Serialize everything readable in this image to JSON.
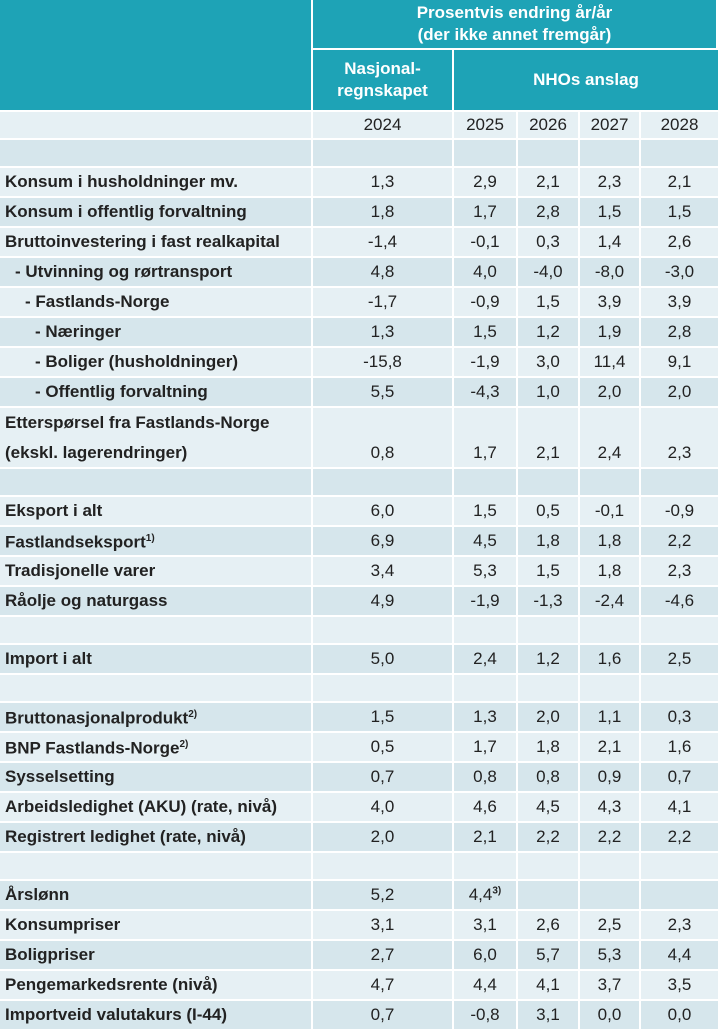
{
  "header": {
    "title": "Prosentvis endring år/år\n(der ikke annet fremgår)",
    "group1": "Nasjonal-\nregnskapet",
    "group2": "NHOs anslag",
    "years": [
      "2024",
      "2025",
      "2026",
      "2027",
      "2028"
    ]
  },
  "table": {
    "rows": [
      null,
      {
        "label": "Konsum i husholdninger mv.",
        "level": 0,
        "values": [
          "1,3",
          "2,9",
          "2,1",
          "2,3",
          "2,1"
        ]
      },
      {
        "label": "Konsum i offentlig forvaltning",
        "level": 0,
        "values": [
          "1,8",
          "1,7",
          "2,8",
          "1,5",
          "1,5"
        ]
      },
      {
        "label": "Bruttoinvestering i fast realkapital",
        "level": 0,
        "values": [
          "-1,4",
          "-0,1",
          "0,3",
          "1,4",
          "2,6"
        ]
      },
      {
        "label": "- Utvinning og rørtransport",
        "level": 1,
        "values": [
          "4,8",
          "4,0",
          "-4,0",
          "-8,0",
          "-3,0"
        ]
      },
      {
        "label": "- Fastlands-Norge",
        "level": 2,
        "values": [
          "-1,7",
          "-0,9",
          "1,5",
          "3,9",
          "3,9"
        ]
      },
      {
        "label": "- Næringer",
        "level": 3,
        "values": [
          "1,3",
          "1,5",
          "1,2",
          "1,9",
          "2,8"
        ]
      },
      {
        "label": "- Boliger (husholdninger)",
        "level": 3,
        "values": [
          "-15,8",
          "-1,9",
          "3,0",
          "11,4",
          "9,1"
        ]
      },
      {
        "label": "- Offentlig forvaltning",
        "level": 3,
        "values": [
          "5,5",
          "-4,3",
          "1,0",
          "2,0",
          "2,0"
        ]
      },
      {
        "label": "Etterspørsel fra Fastlands-Norge\n(ekskl. lagerendringer)",
        "level": 0,
        "values": [
          "0,8",
          "1,7",
          "2,1",
          "2,4",
          "2,3"
        ]
      },
      null,
      {
        "label": "Eksport i alt",
        "level": 0,
        "values": [
          "6,0",
          "1,5",
          "0,5",
          "-0,1",
          "-0,9"
        ]
      },
      {
        "label": "Fastlandseksport",
        "note": "1)",
        "level": 0,
        "values": [
          "6,9",
          "4,5",
          "1,8",
          "1,8",
          "2,2"
        ]
      },
      {
        "label": "Tradisjonelle varer",
        "level": 0,
        "values": [
          "3,4",
          "5,3",
          "1,5",
          "1,8",
          "2,3"
        ]
      },
      {
        "label": "Råolje og naturgass",
        "level": 0,
        "values": [
          "4,9",
          "-1,9",
          "-1,3",
          "-2,4",
          "-4,6"
        ]
      },
      null,
      {
        "label": "Import i alt",
        "level": 0,
        "values": [
          "5,0",
          "2,4",
          "1,2",
          "1,6",
          "2,5"
        ]
      },
      null,
      {
        "label": "Bruttonasjonalprodukt",
        "note": "2)",
        "level": 0,
        "values": [
          "1,5",
          "1,3",
          "2,0",
          "1,1",
          "0,3"
        ]
      },
      {
        "label": "BNP Fastlands-Norge",
        "note": "2)",
        "level": 0,
        "values": [
          "0,5",
          "1,7",
          "1,8",
          "2,1",
          "1,6"
        ]
      },
      {
        "label": "Sysselsetting",
        "level": 0,
        "values": [
          "0,7",
          "0,8",
          "0,8",
          "0,9",
          "0,7"
        ]
      },
      {
        "label": "Arbeidsledighet (AKU) (rate, nivå)",
        "level": 0,
        "values": [
          "4,0",
          "4,6",
          "4,5",
          "4,3",
          "4,1"
        ]
      },
      {
        "label": "Registrert ledighet (rate, nivå)",
        "level": 0,
        "values": [
          "2,0",
          "2,1",
          "2,2",
          "2,2",
          "2,2"
        ]
      },
      null,
      {
        "label": "Årslønn",
        "level": 0,
        "values": [
          "5,2",
          {
            "text": "4,4",
            "note": "3)"
          },
          null,
          null,
          null
        ]
      },
      {
        "label": "Konsumpriser",
        "level": 0,
        "values": [
          "3,1",
          "3,1",
          "2,6",
          "2,5",
          "2,3"
        ]
      },
      {
        "label": "Boligpriser",
        "level": 0,
        "values": [
          "2,7",
          "6,0",
          "5,7",
          "5,3",
          "4,4"
        ]
      },
      {
        "label": "Pengemarkedsrente (nivå)",
        "level": 0,
        "values": [
          "4,7",
          "4,4",
          "4,1",
          "3,7",
          "3,5"
        ]
      },
      {
        "label": "Importveid valutakurs (I-44)",
        "level": 0,
        "values": [
          "0,7",
          "-0,8",
          "3,1",
          "0,0",
          "0,0"
        ]
      }
    ]
  }
}
